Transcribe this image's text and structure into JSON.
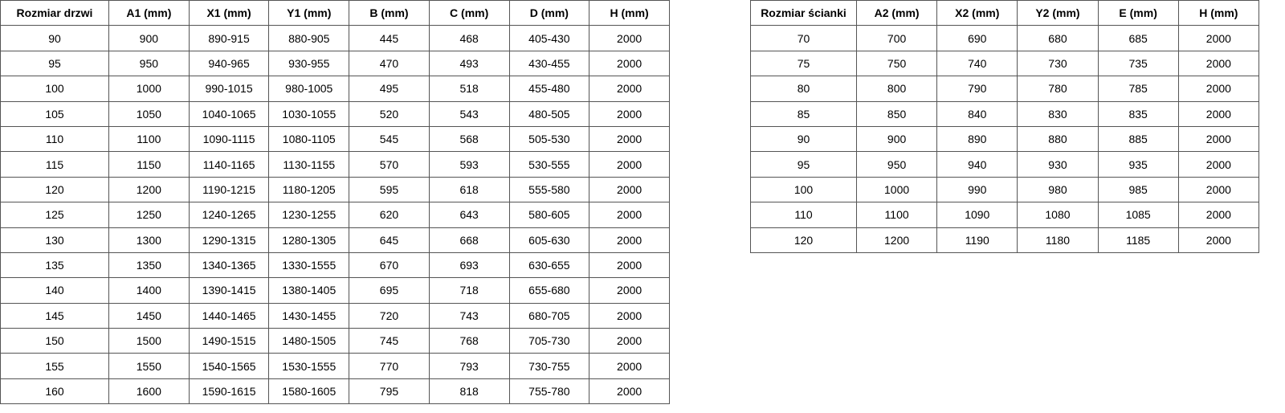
{
  "door_table": {
    "headers": [
      "Rozmiar drzwi",
      "A1 (mm)",
      "X1 (mm)",
      "Y1 (mm)",
      "B (mm)",
      "C (mm)",
      "D (mm)",
      "H (mm)"
    ],
    "rows": [
      [
        "90",
        "900",
        "890-915",
        "880-905",
        "445",
        "468",
        "405-430",
        "2000"
      ],
      [
        "95",
        "950",
        "940-965",
        "930-955",
        "470",
        "493",
        "430-455",
        "2000"
      ],
      [
        "100",
        "1000",
        "990-1015",
        "980-1005",
        "495",
        "518",
        "455-480",
        "2000"
      ],
      [
        "105",
        "1050",
        "1040-1065",
        "1030-1055",
        "520",
        "543",
        "480-505",
        "2000"
      ],
      [
        "110",
        "1100",
        "1090-1115",
        "1080-1105",
        "545",
        "568",
        "505-530",
        "2000"
      ],
      [
        "115",
        "1150",
        "1140-1165",
        "1130-1155",
        "570",
        "593",
        "530-555",
        "2000"
      ],
      [
        "120",
        "1200",
        "1190-1215",
        "1180-1205",
        "595",
        "618",
        "555-580",
        "2000"
      ],
      [
        "125",
        "1250",
        "1240-1265",
        "1230-1255",
        "620",
        "643",
        "580-605",
        "2000"
      ],
      [
        "130",
        "1300",
        "1290-1315",
        "1280-1305",
        "645",
        "668",
        "605-630",
        "2000"
      ],
      [
        "135",
        "1350",
        "1340-1365",
        "1330-1555",
        "670",
        "693",
        "630-655",
        "2000"
      ],
      [
        "140",
        "1400",
        "1390-1415",
        "1380-1405",
        "695",
        "718",
        "655-680",
        "2000"
      ],
      [
        "145",
        "1450",
        "1440-1465",
        "1430-1455",
        "720",
        "743",
        "680-705",
        "2000"
      ],
      [
        "150",
        "1500",
        "1490-1515",
        "1480-1505",
        "745",
        "768",
        "705-730",
        "2000"
      ],
      [
        "155",
        "1550",
        "1540-1565",
        "1530-1555",
        "770",
        "793",
        "730-755",
        "2000"
      ],
      [
        "160",
        "1600",
        "1590-1615",
        "1580-1605",
        "795",
        "818",
        "755-780",
        "2000"
      ]
    ]
  },
  "wall_table": {
    "headers": [
      "Rozmiar ścianki",
      "A2 (mm)",
      "X2 (mm)",
      "Y2 (mm)",
      "E (mm)",
      "H (mm)"
    ],
    "rows": [
      [
        "70",
        "700",
        "690",
        "680",
        "685",
        "2000"
      ],
      [
        "75",
        "750",
        "740",
        "730",
        "735",
        "2000"
      ],
      [
        "80",
        "800",
        "790",
        "780",
        "785",
        "2000"
      ],
      [
        "85",
        "850",
        "840",
        "830",
        "835",
        "2000"
      ],
      [
        "90",
        "900",
        "890",
        "880",
        "885",
        "2000"
      ],
      [
        "95",
        "950",
        "940",
        "930",
        "935",
        "2000"
      ],
      [
        "100",
        "1000",
        "990",
        "980",
        "985",
        "2000"
      ],
      [
        "110",
        "1100",
        "1090",
        "1080",
        "1085",
        "2000"
      ],
      [
        "120",
        "1200",
        "1190",
        "1180",
        "1185",
        "2000"
      ]
    ]
  }
}
